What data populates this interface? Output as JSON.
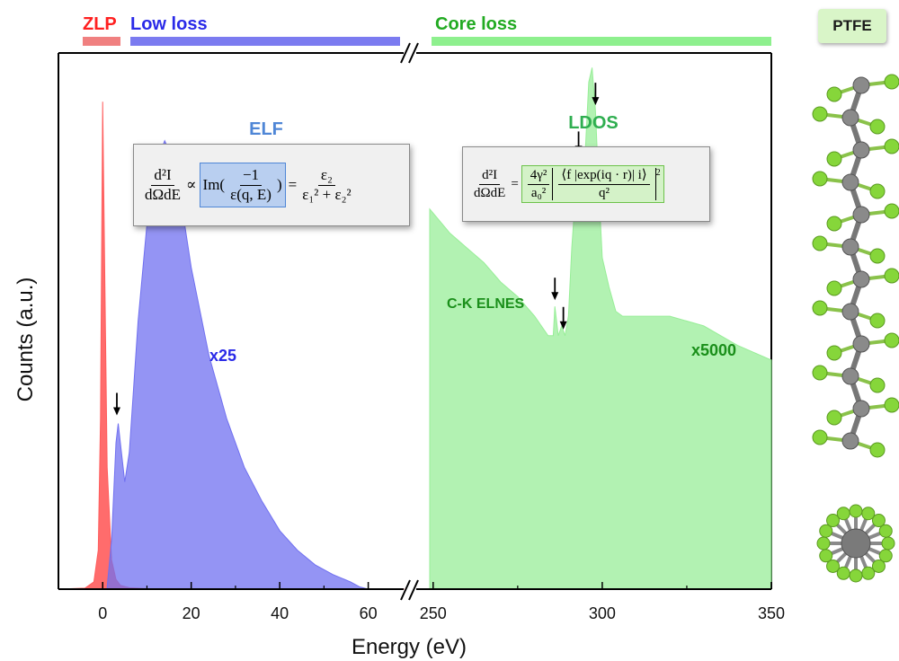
{
  "chart_data": {
    "type": "area",
    "xlabel": "Energy (eV)",
    "ylabel": "Counts (a.u.)",
    "axis_break": true,
    "x_ticks_left": [
      "0",
      "20",
      "40",
      "60"
    ],
    "x_ticks_right": [
      "250",
      "300",
      "350"
    ],
    "xlim_left": [
      -10,
      68
    ],
    "xlim_right": [
      245,
      350
    ],
    "region_labels": [
      {
        "text": "ZLP",
        "color": "#ff2020"
      },
      {
        "text": "Low loss",
        "color": "#2a2ae8"
      },
      {
        "text": "Core loss",
        "color": "#22aa22"
      }
    ],
    "section_titles": {
      "elf": "ELF",
      "ldos": "LDOS"
    },
    "annotations": {
      "low_loss_scale": "x25",
      "core_loss_scale": "x5000",
      "elnes": "C-K ELNES"
    },
    "series": [
      {
        "id": "zlp",
        "color": "#ff5c5c",
        "x": [
          -10,
          -4,
          -2,
          -1,
          -0.5,
          0,
          0.5,
          1,
          2,
          3,
          4,
          6,
          10,
          30,
          68
        ],
        "y": [
          0,
          0.2,
          1.5,
          8,
          35,
          100,
          62,
          25,
          6,
          2,
          0.8,
          0.3,
          0.1,
          0.05,
          0.02
        ]
      },
      {
        "id": "low_loss",
        "color": "#7070f0",
        "x": [
          1,
          2,
          3,
          3.5,
          4,
          5,
          6,
          8,
          10,
          12,
          14,
          16,
          18,
          20,
          24,
          28,
          32,
          36,
          40,
          44,
          48,
          52,
          56,
          58,
          60
        ],
        "y": [
          0.5,
          10,
          30,
          34,
          30,
          22,
          28,
          55,
          75,
          87,
          92,
          88,
          78,
          66,
          48,
          35,
          25,
          18,
          12,
          8,
          5,
          3,
          1.5,
          0.5,
          0
        ]
      },
      {
        "id": "core_loss",
        "color": "#98ee98",
        "x": [
          249,
          255,
          260,
          265,
          270,
          275,
          280,
          284,
          285.5,
          286,
          287,
          288,
          289,
          290,
          291,
          292,
          293,
          293.5,
          294,
          295,
          296,
          297,
          298,
          299,
          300,
          302,
          304,
          306,
          310,
          320,
          330,
          340,
          350
        ],
        "y": [
          78,
          73,
          70,
          67,
          63,
          60,
          56,
          52,
          52,
          58,
          52,
          54,
          52,
          56,
          70,
          80,
          88,
          84,
          76,
          90,
          104,
          107,
          98,
          82,
          68,
          62,
          57,
          56,
          56,
          56,
          54,
          50,
          47
        ]
      }
    ],
    "arrows_x": [
      3.2,
      286,
      288.5,
      293,
      298
    ],
    "equations": {
      "elf": {
        "lhs_num": "d²I",
        "lhs_den": "dΩdE",
        "prop": "∝",
        "im": "Im(",
        "im_num": "−1",
        "im_den": "ε(q, E)",
        "close": ")",
        "eq": "=",
        "rhs_num": "ε₂",
        "rhs_den": "ε₁² + ε₂²"
      },
      "ldos": {
        "lhs_num": "d²I",
        "lhs_den": "dΩdE",
        "eq": "=",
        "pre_num": "4γ²",
        "pre_den": "a₀²",
        "matrix": "⟨f |exp(iq · r)| i⟩",
        "mat_den": "q²",
        "power": "2"
      }
    },
    "ptfe_label": "PTFE",
    "colors": {
      "zlp": "#ff5c5c",
      "low_loss": "#7070f0",
      "core_loss": "#98ee98",
      "elf_title": "#4f86d6",
      "ldos_title": "#2fae50"
    }
  }
}
